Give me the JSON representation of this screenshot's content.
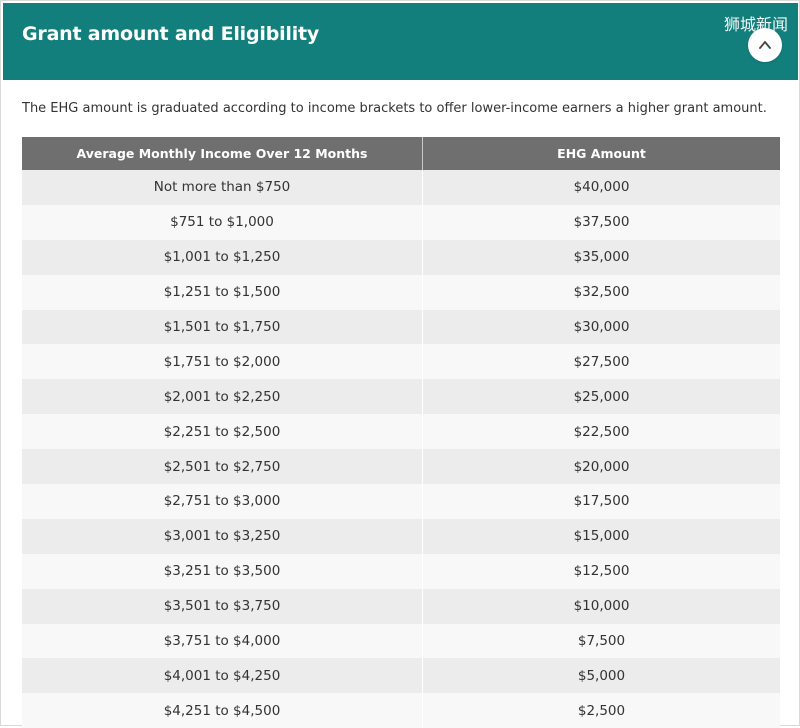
{
  "header": {
    "title": "Grant amount and Eligibility",
    "watermark": "狮城新闻",
    "toggle_icon": "chevron-up-icon",
    "background_color": "#137f7d"
  },
  "intro_text": "The EHG amount is graduated according to income brackets to offer lower-income earners a higher grant amount.",
  "table": {
    "columns": [
      "Average Monthly Income Over 12 Months",
      "EHG Amount"
    ],
    "header_color": "#6f6f6f",
    "rows": [
      [
        "Not more than $750",
        "$40,000"
      ],
      [
        "$751 to $1,000",
        "$37,500"
      ],
      [
        "$1,001 to $1,250",
        "$35,000"
      ],
      [
        "$1,251 to $1,500",
        "$32,500"
      ],
      [
        "$1,501 to $1,750",
        "$30,000"
      ],
      [
        "$1,751 to $2,000",
        "$27,500"
      ],
      [
        "$2,001 to $2,250",
        "$25,000"
      ],
      [
        "$2,251 to $2,500",
        "$22,500"
      ],
      [
        "$2,501 to $2,750",
        "$20,000"
      ],
      [
        "$2,751 to $3,000",
        "$17,500"
      ],
      [
        "$3,001 to $3,250",
        "$15,000"
      ],
      [
        "$3,251 to $3,500",
        "$12,500"
      ],
      [
        "$3,501 to $3,750",
        "$10,000"
      ],
      [
        "$3,751 to $4,000",
        "$7,500"
      ],
      [
        "$4,001 to $4,250",
        "$5,000"
      ],
      [
        "$4,251 to $4,500",
        "$2,500"
      ]
    ]
  }
}
